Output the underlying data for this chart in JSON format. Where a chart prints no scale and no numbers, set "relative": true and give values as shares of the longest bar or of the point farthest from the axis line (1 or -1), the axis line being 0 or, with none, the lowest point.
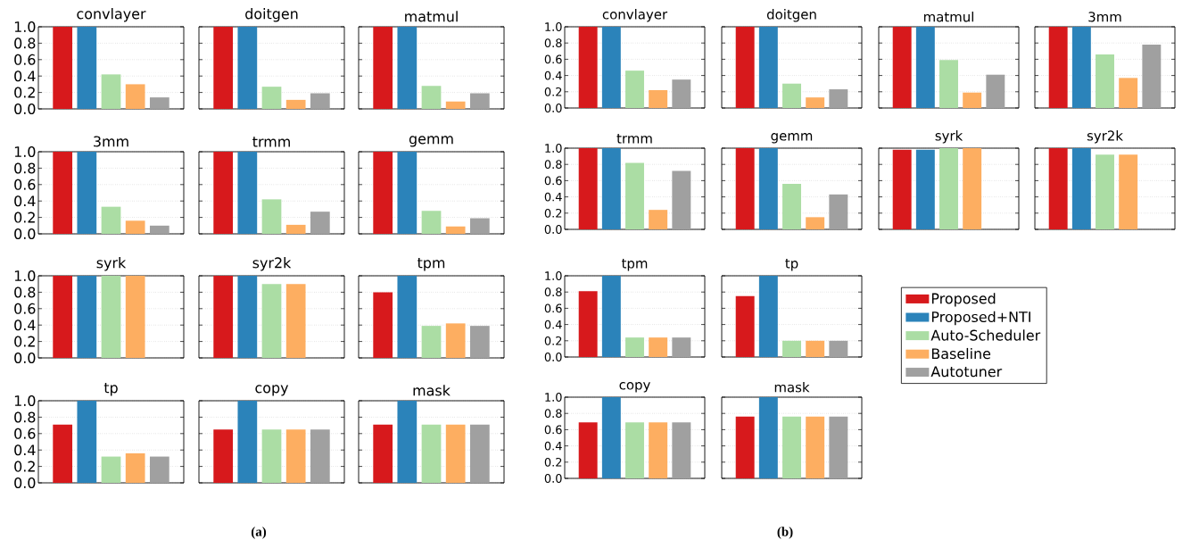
{
  "chart_data": [
    {
      "type": "bar",
      "title": "convlayer",
      "categories": [
        null
      ],
      "series": [
        {
          "color": "#d7191c",
          "values": [
            1.0
          ]
        },
        {
          "color": "#2b83ba",
          "values": [
            1.0
          ]
        },
        {
          "color": "#abdda4",
          "values": [
            0.42
          ]
        },
        {
          "color": "#fdae61",
          "values": [
            0.3
          ]
        },
        {
          "color": "#a0a0a0",
          "values": [
            0.14
          ]
        }
      ],
      "ylim": [
        0,
        1
      ],
      "yticks": [
        {
          "value": 0,
          "label": "0.0"
        },
        {
          "value": 0.2,
          "label": "0.2"
        },
        {
          "value": 0.4,
          "label": "0.4"
        },
        {
          "value": 0.6,
          "label": "0.6"
        },
        {
          "value": 0.8,
          "label": "0.8"
        },
        {
          "value": 1,
          "label": "1.0"
        }
      ],
      "grid": "y",
      "tick_labels": "y"
    },
    {
      "type": "bar",
      "title": "doitgen",
      "categories": [
        null
      ],
      "series": [
        {
          "color": "#d7191c",
          "values": [
            1.0
          ]
        },
        {
          "color": "#2b83ba",
          "values": [
            1.0
          ]
        },
        {
          "color": "#abdda4",
          "values": [
            0.27
          ]
        },
        {
          "color": "#fdae61",
          "values": [
            0.11
          ]
        },
        {
          "color": "#a0a0a0",
          "values": [
            0.19
          ]
        }
      ],
      "relative": true,
      "grid": "y"
    },
    {
      "type": "bar",
      "title": "matmul",
      "categories": [
        null
      ],
      "series": [
        {
          "color": "#d7191c",
          "values": [
            1.0
          ]
        },
        {
          "color": "#2b83ba",
          "values": [
            1.0
          ]
        },
        {
          "color": "#abdda4",
          "values": [
            0.28
          ]
        },
        {
          "color": "#fdae61",
          "values": [
            0.09
          ]
        },
        {
          "color": "#a0a0a0",
          "values": [
            0.19
          ]
        }
      ],
      "relative": true,
      "grid": "y"
    },
    {
      "type": "bar",
      "title": "3mm",
      "categories": [
        null
      ],
      "series": [
        {
          "color": "#d7191c",
          "values": [
            1.0
          ]
        },
        {
          "color": "#2b83ba",
          "values": [
            1.0
          ]
        },
        {
          "color": "#abdda4",
          "values": [
            0.33
          ]
        },
        {
          "color": "#fdae61",
          "values": [
            0.16
          ]
        },
        {
          "color": "#a0a0a0",
          "values": [
            0.1
          ]
        }
      ],
      "ylim": [
        0,
        1
      ],
      "yticks": [
        {
          "value": 0,
          "label": "0.0"
        },
        {
          "value": 0.2,
          "label": "0.2"
        },
        {
          "value": 0.4,
          "label": "0.4"
        },
        {
          "value": 0.6,
          "label": "0.6"
        },
        {
          "value": 0.8,
          "label": "0.8"
        },
        {
          "value": 1,
          "label": "1.0"
        }
      ],
      "grid": "y",
      "tick_labels": "y"
    },
    {
      "type": "bar",
      "title": "trmm",
      "categories": [
        null
      ],
      "series": [
        {
          "color": "#d7191c",
          "values": [
            1.0
          ]
        },
        {
          "color": "#2b83ba",
          "values": [
            1.0
          ]
        },
        {
          "color": "#abdda4",
          "values": [
            0.42
          ]
        },
        {
          "color": "#fdae61",
          "values": [
            0.11
          ]
        },
        {
          "color": "#a0a0a0",
          "values": [
            0.27
          ]
        }
      ],
      "relative": true,
      "grid": "y"
    },
    {
      "type": "bar",
      "title": "gemm",
      "categories": [
        null
      ],
      "series": [
        {
          "color": "#d7191c",
          "values": [
            1.0
          ]
        },
        {
          "color": "#2b83ba",
          "values": [
            1.0
          ]
        },
        {
          "color": "#abdda4",
          "values": [
            0.28
          ]
        },
        {
          "color": "#fdae61",
          "values": [
            0.09
          ]
        },
        {
          "color": "#a0a0a0",
          "values": [
            0.19
          ]
        }
      ],
      "relative": true,
      "grid": "y"
    },
    {
      "type": "bar",
      "title": "syrk",
      "categories": [
        null
      ],
      "series": [
        {
          "color": "#d7191c",
          "values": [
            1.0
          ]
        },
        {
          "color": "#2b83ba",
          "values": [
            1.0
          ]
        },
        {
          "color": "#abdda4",
          "values": [
            1.0
          ]
        },
        {
          "color": "#fdae61",
          "values": [
            1.0
          ]
        },
        {
          "color": "#a0a0a0",
          "values": [
            null
          ]
        }
      ],
      "ylim": [
        0,
        1
      ],
      "yticks": [
        {
          "value": 0,
          "label": "0.0"
        },
        {
          "value": 0.2,
          "label": "0.2"
        },
        {
          "value": 0.4,
          "label": "0.4"
        },
        {
          "value": 0.6,
          "label": "0.6"
        },
        {
          "value": 0.8,
          "label": "0.8"
        },
        {
          "value": 1,
          "label": "1.0"
        }
      ],
      "grid": "y",
      "tick_labels": "y"
    },
    {
      "type": "bar",
      "title": "syr2k",
      "categories": [
        null
      ],
      "series": [
        {
          "color": "#d7191c",
          "values": [
            1.0
          ]
        },
        {
          "color": "#2b83ba",
          "values": [
            1.0
          ]
        },
        {
          "color": "#abdda4",
          "values": [
            0.9
          ]
        },
        {
          "color": "#fdae61",
          "values": [
            0.9
          ]
        },
        {
          "color": "#a0a0a0",
          "values": [
            null
          ]
        }
      ],
      "relative": true,
      "grid": "y"
    },
    {
      "type": "bar",
      "title": "tpm",
      "categories": [
        null
      ],
      "series": [
        {
          "color": "#d7191c",
          "values": [
            0.8
          ]
        },
        {
          "color": "#2b83ba",
          "values": [
            1.0
          ]
        },
        {
          "color": "#abdda4",
          "values": [
            0.39
          ]
        },
        {
          "color": "#fdae61",
          "values": [
            0.42
          ]
        },
        {
          "color": "#a0a0a0",
          "values": [
            0.39
          ]
        }
      ],
      "relative": true,
      "grid": "y"
    },
    {
      "type": "bar",
      "title": "tp",
      "categories": [
        null
      ],
      "series": [
        {
          "color": "#d7191c",
          "values": [
            0.71
          ]
        },
        {
          "color": "#2b83ba",
          "values": [
            1.0
          ]
        },
        {
          "color": "#abdda4",
          "values": [
            0.32
          ]
        },
        {
          "color": "#fdae61",
          "values": [
            0.36
          ]
        },
        {
          "color": "#a0a0a0",
          "values": [
            0.32
          ]
        }
      ],
      "ylim": [
        0,
        1
      ],
      "yticks": [
        {
          "value": 0,
          "label": "0.0"
        },
        {
          "value": 0.2,
          "label": "0.2"
        },
        {
          "value": 0.4,
          "label": "0.4"
        },
        {
          "value": 0.6,
          "label": "0.6"
        },
        {
          "value": 0.8,
          "label": "0.8"
        },
        {
          "value": 1,
          "label": "1.0"
        }
      ],
      "grid": "y",
      "tick_labels": "y"
    },
    {
      "type": "bar",
      "title": "copy",
      "categories": [
        null
      ],
      "series": [
        {
          "color": "#d7191c",
          "values": [
            0.65
          ]
        },
        {
          "color": "#2b83ba",
          "values": [
            1.0
          ]
        },
        {
          "color": "#abdda4",
          "values": [
            0.65
          ]
        },
        {
          "color": "#fdae61",
          "values": [
            0.65
          ]
        },
        {
          "color": "#a0a0a0",
          "values": [
            0.65
          ]
        }
      ],
      "relative": true,
      "grid": "y"
    },
    {
      "type": "bar",
      "title": "mask",
      "categories": [
        null
      ],
      "series": [
        {
          "color": "#d7191c",
          "values": [
            0.71
          ]
        },
        {
          "color": "#2b83ba",
          "values": [
            1.0
          ]
        },
        {
          "color": "#abdda4",
          "values": [
            0.71
          ]
        },
        {
          "color": "#fdae61",
          "values": [
            0.71
          ]
        },
        {
          "color": "#a0a0a0",
          "values": [
            0.71
          ]
        }
      ],
      "relative": true,
      "grid": "y",
      "annotations": [
        "(a)"
      ]
    },
    {
      "type": "bar",
      "title": "convlayer",
      "categories": [
        null
      ],
      "series": [
        {
          "color": "#d7191c",
          "values": [
            1.0
          ]
        },
        {
          "color": "#2b83ba",
          "values": [
            1.0
          ]
        },
        {
          "color": "#abdda4",
          "values": [
            0.46
          ]
        },
        {
          "color": "#fdae61",
          "values": [
            0.22
          ]
        },
        {
          "color": "#a0a0a0",
          "values": [
            0.35
          ]
        }
      ],
      "ylim": [
        0,
        1
      ],
      "yticks": [
        {
          "value": 0,
          "label": "0.0"
        },
        {
          "value": 0.2,
          "label": "0.2"
        },
        {
          "value": 0.4,
          "label": "0.4"
        },
        {
          "value": 0.6,
          "label": "0.6"
        },
        {
          "value": 0.8,
          "label": "0.8"
        },
        {
          "value": 1,
          "label": "1.0"
        }
      ],
      "grid": "y",
      "tick_labels": "y"
    },
    {
      "type": "bar",
      "title": "doitgen",
      "categories": [
        null
      ],
      "series": [
        {
          "color": "#d7191c",
          "values": [
            1.0
          ]
        },
        {
          "color": "#2b83ba",
          "values": [
            1.0
          ]
        },
        {
          "color": "#abdda4",
          "values": [
            0.3
          ]
        },
        {
          "color": "#fdae61",
          "values": [
            0.13
          ]
        },
        {
          "color": "#a0a0a0",
          "values": [
            0.23
          ]
        }
      ],
      "relative": true,
      "grid": "y"
    },
    {
      "type": "bar",
      "title": "matmul",
      "categories": [
        null
      ],
      "series": [
        {
          "color": "#d7191c",
          "values": [
            1.0
          ]
        },
        {
          "color": "#2b83ba",
          "values": [
            1.0
          ]
        },
        {
          "color": "#abdda4",
          "values": [
            0.59
          ]
        },
        {
          "color": "#fdae61",
          "values": [
            0.19
          ]
        },
        {
          "color": "#a0a0a0",
          "values": [
            0.41
          ]
        }
      ],
      "relative": true,
      "grid": "y"
    },
    {
      "type": "bar",
      "title": "3mm",
      "categories": [
        null
      ],
      "series": [
        {
          "color": "#d7191c",
          "values": [
            1.0
          ]
        },
        {
          "color": "#2b83ba",
          "values": [
            1.0
          ]
        },
        {
          "color": "#abdda4",
          "values": [
            0.66
          ]
        },
        {
          "color": "#fdae61",
          "values": [
            0.37
          ]
        },
        {
          "color": "#a0a0a0",
          "values": [
            0.78
          ]
        }
      ],
      "relative": true,
      "grid": "y"
    },
    {
      "type": "bar",
      "title": "trmm",
      "categories": [
        null
      ],
      "series": [
        {
          "color": "#d7191c",
          "values": [
            1.0
          ]
        },
        {
          "color": "#2b83ba",
          "values": [
            1.0
          ]
        },
        {
          "color": "#abdda4",
          "values": [
            0.82
          ]
        },
        {
          "color": "#fdae61",
          "values": [
            0.24
          ]
        },
        {
          "color": "#a0a0a0",
          "values": [
            0.72
          ]
        }
      ],
      "ylim": [
        0,
        1
      ],
      "yticks": [
        {
          "value": 0,
          "label": "0.0"
        },
        {
          "value": 0.2,
          "label": "0.2"
        },
        {
          "value": 0.4,
          "label": "0.4"
        },
        {
          "value": 0.6,
          "label": "0.6"
        },
        {
          "value": 0.8,
          "label": "0.8"
        },
        {
          "value": 1,
          "label": "1.0"
        }
      ],
      "grid": "y",
      "tick_labels": "y"
    },
    {
      "type": "bar",
      "title": "gemm",
      "categories": [
        null
      ],
      "series": [
        {
          "color": "#d7191c",
          "values": [
            1.0
          ]
        },
        {
          "color": "#2b83ba",
          "values": [
            1.0
          ]
        },
        {
          "color": "#abdda4",
          "values": [
            0.56
          ]
        },
        {
          "color": "#fdae61",
          "values": [
            0.15
          ]
        },
        {
          "color": "#a0a0a0",
          "values": [
            0.43
          ]
        }
      ],
      "relative": true,
      "grid": "y"
    },
    {
      "type": "bar",
      "title": "syrk",
      "categories": [
        null
      ],
      "series": [
        {
          "color": "#d7191c",
          "values": [
            0.98
          ]
        },
        {
          "color": "#2b83ba",
          "values": [
            0.98
          ]
        },
        {
          "color": "#abdda4",
          "values": [
            1.0
          ]
        },
        {
          "color": "#fdae61",
          "values": [
            1.0
          ]
        },
        {
          "color": "#a0a0a0",
          "values": [
            null
          ]
        }
      ],
      "relative": true,
      "grid": "y"
    },
    {
      "type": "bar",
      "title": "syr2k",
      "categories": [
        null
      ],
      "series": [
        {
          "color": "#d7191c",
          "values": [
            1.0
          ]
        },
        {
          "color": "#2b83ba",
          "values": [
            1.0
          ]
        },
        {
          "color": "#abdda4",
          "values": [
            0.92
          ]
        },
        {
          "color": "#fdae61",
          "values": [
            0.92
          ]
        },
        {
          "color": "#a0a0a0",
          "values": [
            null
          ]
        }
      ],
      "relative": true,
      "grid": "y"
    },
    {
      "type": "bar",
      "title": "tpm",
      "categories": [
        null
      ],
      "series": [
        {
          "color": "#d7191c",
          "values": [
            0.81
          ]
        },
        {
          "color": "#2b83ba",
          "values": [
            1.0
          ]
        },
        {
          "color": "#abdda4",
          "values": [
            0.24
          ]
        },
        {
          "color": "#fdae61",
          "values": [
            0.24
          ]
        },
        {
          "color": "#a0a0a0",
          "values": [
            0.24
          ]
        }
      ],
      "ylim": [
        0,
        1
      ],
      "yticks": [
        {
          "value": 0,
          "label": "0.0"
        },
        {
          "value": 0.2,
          "label": "0.2"
        },
        {
          "value": 0.4,
          "label": "0.4"
        },
        {
          "value": 0.6,
          "label": "0.6"
        },
        {
          "value": 0.8,
          "label": "0.8"
        },
        {
          "value": 1,
          "label": "1.0"
        }
      ],
      "grid": "y",
      "tick_labels": "y"
    },
    {
      "type": "bar",
      "title": "tp",
      "categories": [
        null
      ],
      "series": [
        {
          "name": "Proposed",
          "color": "#d7191c",
          "values": [
            0.75
          ]
        },
        {
          "name": "Proposed+NTI",
          "color": "#2b83ba",
          "values": [
            1.0
          ]
        },
        {
          "name": "Auto-Scheduler",
          "color": "#abdda4",
          "values": [
            0.2
          ]
        },
        {
          "name": "Baseline",
          "color": "#fdae61",
          "values": [
            0.2
          ]
        },
        {
          "name": "Autotuner",
          "color": "#a0a0a0",
          "values": [
            0.2
          ]
        }
      ],
      "relative": true,
      "grid": "y",
      "legend": "right"
    },
    {
      "type": "bar",
      "title": "copy",
      "categories": [
        null
      ],
      "series": [
        {
          "color": "#d7191c",
          "values": [
            0.69
          ]
        },
        {
          "color": "#2b83ba",
          "values": [
            1.0
          ]
        },
        {
          "color": "#abdda4",
          "values": [
            0.69
          ]
        },
        {
          "color": "#fdae61",
          "values": [
            0.69
          ]
        },
        {
          "color": "#a0a0a0",
          "values": [
            0.69
          ]
        }
      ],
      "ylim": [
        0,
        1
      ],
      "yticks": [
        {
          "value": 0,
          "label": "0.0"
        },
        {
          "value": 0.2,
          "label": "0.2"
        },
        {
          "value": 0.4,
          "label": "0.4"
        },
        {
          "value": 0.6,
          "label": "0.6"
        },
        {
          "value": 0.8,
          "label": "0.8"
        },
        {
          "value": 1,
          "label": "1.0"
        }
      ],
      "grid": "y",
      "tick_labels": "y"
    },
    {
      "type": "bar",
      "title": "mask",
      "categories": [
        null
      ],
      "series": [
        {
          "color": "#d7191c",
          "values": [
            0.76
          ]
        },
        {
          "color": "#2b83ba",
          "values": [
            1.0
          ]
        },
        {
          "color": "#abdda4",
          "values": [
            0.76
          ]
        },
        {
          "color": "#fdae61",
          "values": [
            0.76
          ]
        },
        {
          "color": "#a0a0a0",
          "values": [
            0.76
          ]
        }
      ],
      "relative": true,
      "grid": "y",
      "annotations": [
        "(b)"
      ]
    }
  ]
}
